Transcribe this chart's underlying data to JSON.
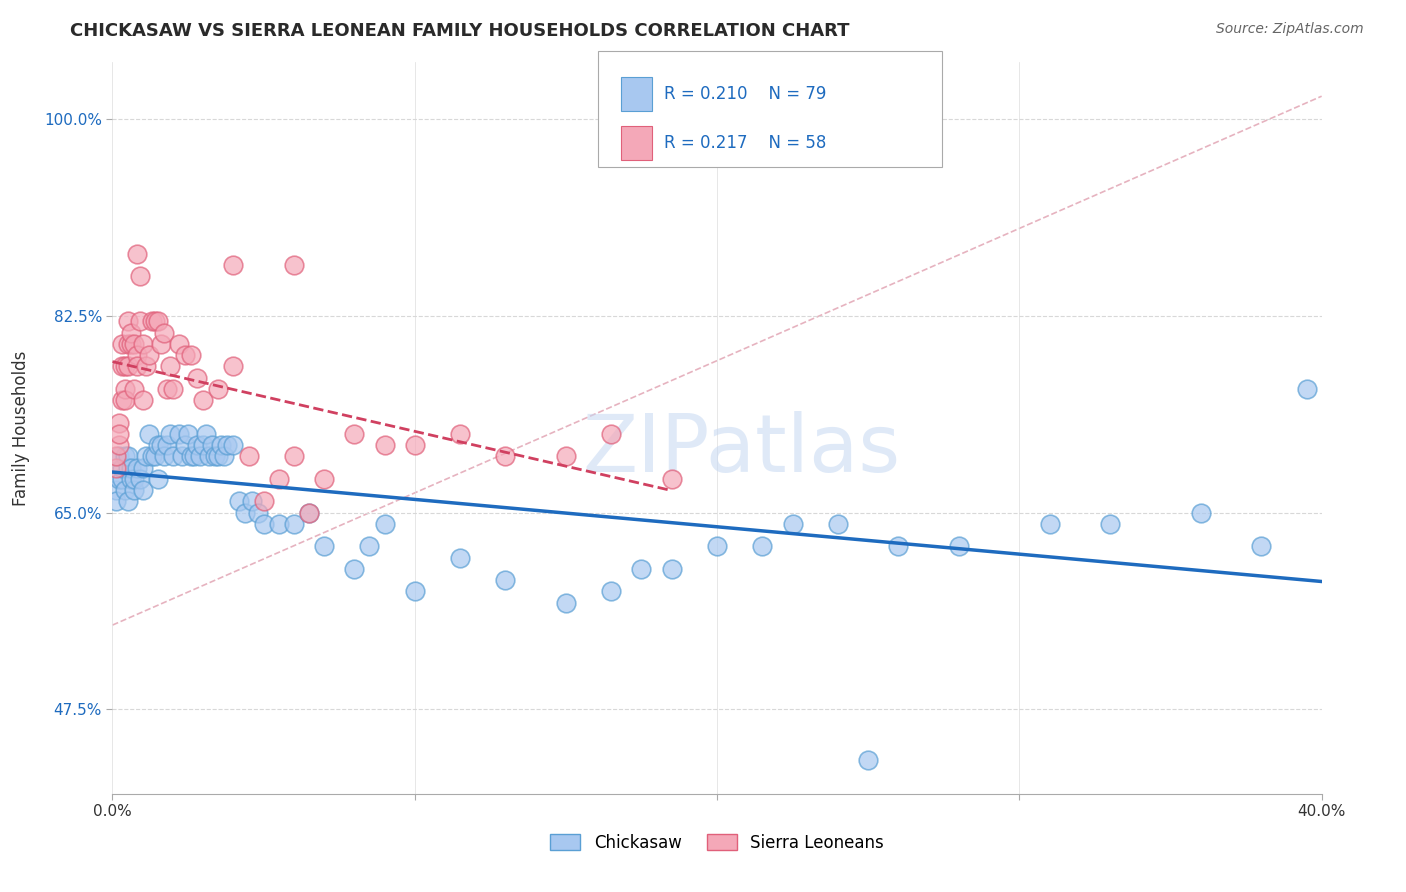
{
  "title": "CHICKASAW VS SIERRA LEONEAN FAMILY HOUSEHOLDS CORRELATION CHART",
  "source_text": "Source: ZipAtlas.com",
  "ylabel": "Family Households",
  "x_min": 0.0,
  "x_max": 0.4,
  "y_min": 0.4,
  "y_max": 1.05,
  "y_ticks": [
    0.475,
    0.65,
    0.825,
    1.0
  ],
  "y_tick_labels": [
    "47.5%",
    "65.0%",
    "82.5%",
    "100.0%"
  ],
  "x_ticks": [
    0.0,
    0.1,
    0.2,
    0.3,
    0.4
  ],
  "x_tick_labels": [
    "0.0%",
    "",
    "",
    "",
    "40.0%"
  ],
  "legend_entries": [
    {
      "label": "Chickasaw",
      "color": "#a8c8f0",
      "edge_color": "#5a9fd4",
      "R": "0.210",
      "N": "79"
    },
    {
      "label": "Sierra Leoneans",
      "color": "#f4a8b8",
      "edge_color": "#e0607a",
      "R": "0.217",
      "N": "58"
    }
  ],
  "trendline_chickasaw_color": "#1e6bbf",
  "trendline_sierra_color": "#d04060",
  "watermark": "ZIPatlas",
  "watermark_color": "#c8d8f0",
  "background_color": "#ffffff",
  "grid_color": "#d8d8d8",
  "chickasaw_x": [
    0.001,
    0.001,
    0.002,
    0.002,
    0.003,
    0.003,
    0.004,
    0.004,
    0.005,
    0.005,
    0.005,
    0.006,
    0.006,
    0.007,
    0.007,
    0.008,
    0.009,
    0.01,
    0.01,
    0.011,
    0.012,
    0.013,
    0.014,
    0.015,
    0.015,
    0.016,
    0.017,
    0.018,
    0.019,
    0.02,
    0.022,
    0.023,
    0.024,
    0.025,
    0.026,
    0.027,
    0.028,
    0.029,
    0.03,
    0.031,
    0.032,
    0.033,
    0.034,
    0.035,
    0.036,
    0.037,
    0.038,
    0.04,
    0.042,
    0.044,
    0.046,
    0.048,
    0.05,
    0.055,
    0.06,
    0.065,
    0.07,
    0.08,
    0.085,
    0.09,
    0.1,
    0.115,
    0.13,
    0.15,
    0.165,
    0.175,
    0.185,
    0.2,
    0.215,
    0.225,
    0.24,
    0.26,
    0.28,
    0.31,
    0.33,
    0.36,
    0.38,
    0.395,
    0.25
  ],
  "chickasaw_y": [
    0.67,
    0.66,
    0.68,
    0.7,
    0.68,
    0.69,
    0.7,
    0.67,
    0.69,
    0.7,
    0.66,
    0.68,
    0.69,
    0.67,
    0.68,
    0.69,
    0.68,
    0.67,
    0.69,
    0.7,
    0.72,
    0.7,
    0.7,
    0.71,
    0.68,
    0.71,
    0.7,
    0.71,
    0.72,
    0.7,
    0.72,
    0.7,
    0.71,
    0.72,
    0.7,
    0.7,
    0.71,
    0.7,
    0.71,
    0.72,
    0.7,
    0.71,
    0.7,
    0.7,
    0.71,
    0.7,
    0.71,
    0.71,
    0.66,
    0.65,
    0.66,
    0.65,
    0.64,
    0.64,
    0.64,
    0.65,
    0.62,
    0.6,
    0.62,
    0.64,
    0.58,
    0.61,
    0.59,
    0.57,
    0.58,
    0.6,
    0.6,
    0.62,
    0.62,
    0.64,
    0.64,
    0.62,
    0.62,
    0.64,
    0.64,
    0.65,
    0.62,
    0.76,
    0.43
  ],
  "sierra_x": [
    0.001,
    0.001,
    0.002,
    0.002,
    0.002,
    0.003,
    0.003,
    0.003,
    0.004,
    0.004,
    0.004,
    0.005,
    0.005,
    0.005,
    0.006,
    0.006,
    0.007,
    0.007,
    0.008,
    0.008,
    0.009,
    0.01,
    0.01,
    0.011,
    0.012,
    0.013,
    0.014,
    0.015,
    0.016,
    0.017,
    0.018,
    0.019,
    0.02,
    0.022,
    0.024,
    0.026,
    0.028,
    0.03,
    0.035,
    0.04,
    0.045,
    0.05,
    0.055,
    0.06,
    0.065,
    0.07,
    0.08,
    0.09,
    0.1,
    0.115,
    0.13,
    0.15,
    0.165,
    0.185,
    0.06,
    0.04,
    0.008,
    0.009
  ],
  "sierra_y": [
    0.69,
    0.7,
    0.71,
    0.73,
    0.72,
    0.75,
    0.78,
    0.8,
    0.76,
    0.78,
    0.75,
    0.8,
    0.82,
    0.78,
    0.8,
    0.81,
    0.76,
    0.8,
    0.79,
    0.78,
    0.82,
    0.75,
    0.8,
    0.78,
    0.79,
    0.82,
    0.82,
    0.82,
    0.8,
    0.81,
    0.76,
    0.78,
    0.76,
    0.8,
    0.79,
    0.79,
    0.77,
    0.75,
    0.76,
    0.78,
    0.7,
    0.66,
    0.68,
    0.7,
    0.65,
    0.68,
    0.72,
    0.71,
    0.71,
    0.72,
    0.7,
    0.7,
    0.72,
    0.68,
    0.87,
    0.87,
    0.88,
    0.86
  ]
}
